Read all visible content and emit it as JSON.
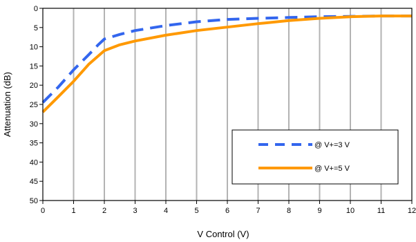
{
  "chart_data": {
    "type": "line",
    "title": "",
    "xlabel": "V Control  (V)",
    "ylabel": "Attenuation (dB)",
    "xlim": [
      0,
      12
    ],
    "ylim": [
      0,
      50
    ],
    "y_inverted": true,
    "x_ticks": [
      0,
      1,
      2,
      3,
      4,
      5,
      6,
      7,
      8,
      9,
      10,
      11,
      12
    ],
    "y_ticks": [
      0,
      5,
      10,
      15,
      20,
      25,
      30,
      35,
      40,
      45,
      50
    ],
    "grid": "vertical",
    "legend_position": "lower-right",
    "series": [
      {
        "name": "@ V+=3 V",
        "color": "#3366ee",
        "dash": "dashed",
        "x": [
          0,
          0.5,
          1.0,
          1.5,
          1.8,
          2.0,
          2.5,
          3.0,
          4.0,
          5.0,
          6.0,
          7.0,
          8.0,
          9.0,
          10.0,
          11.0,
          12.0
        ],
        "y": [
          24.5,
          20.5,
          16.0,
          12.0,
          9.5,
          8.0,
          6.8,
          5.8,
          4.5,
          3.5,
          2.9,
          2.6,
          2.4,
          2.2,
          2.1,
          2.0,
          2.0
        ]
      },
      {
        "name": "@ V+=5 V",
        "color": "#ff9900",
        "dash": "solid",
        "x": [
          0,
          0.5,
          1.0,
          1.5,
          2.0,
          2.5,
          3.0,
          4.0,
          5.0,
          6.0,
          7.0,
          8.0,
          9.0,
          10.0,
          11.0,
          12.0
        ],
        "y": [
          27.0,
          23.0,
          19.0,
          14.5,
          11.0,
          9.5,
          8.5,
          7.0,
          5.8,
          4.9,
          4.0,
          3.2,
          2.6,
          2.2,
          2.0,
          2.0
        ]
      }
    ]
  }
}
